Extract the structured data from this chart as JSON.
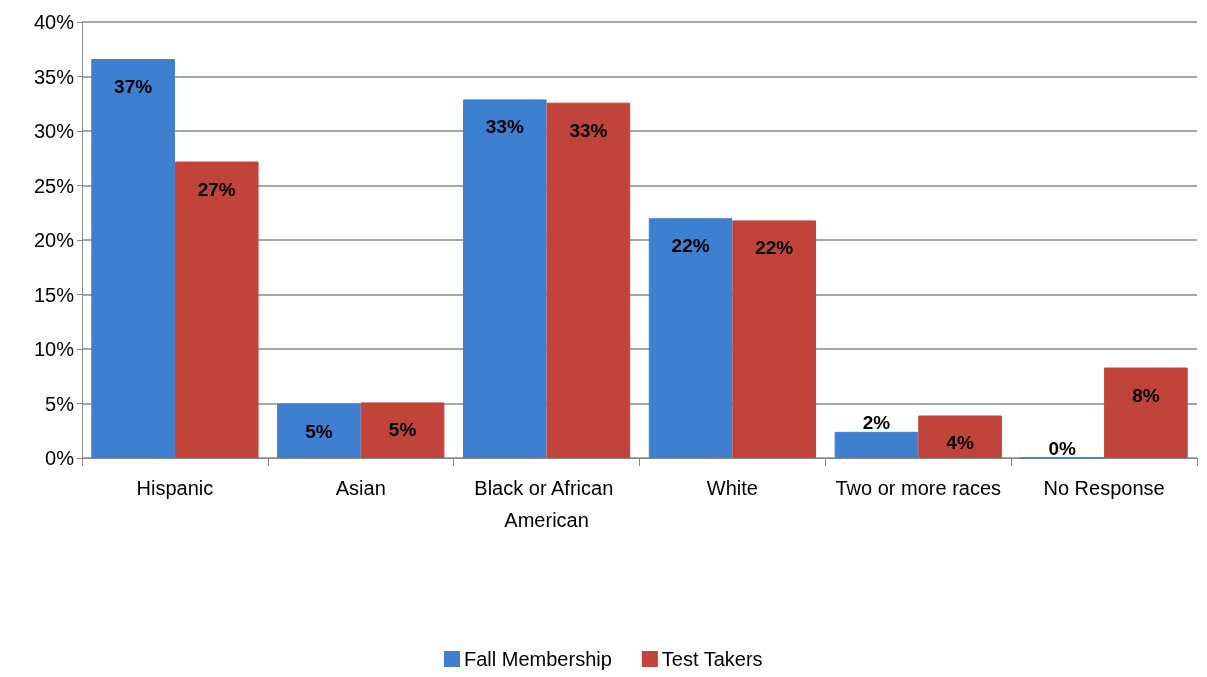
{
  "chart_data": {
    "type": "bar",
    "categories": [
      "Hispanic",
      "Asian",
      "Black or African American",
      "White",
      "Two or more races",
      "No Response"
    ],
    "series": [
      {
        "name": "Fall Membership",
        "color": "#3f7fd0",
        "values": [
          36.6,
          5.0,
          32.9,
          22.0,
          2.4,
          0
        ],
        "value_labels": [
          "37%",
          "5%",
          "33%",
          "22%",
          "2%",
          "0%"
        ]
      },
      {
        "name": "Test Takers",
        "color": "#c0443a",
        "values": [
          27.2,
          5.1,
          32.6,
          21.8,
          3.9,
          8.3
        ],
        "value_labels": [
          "27%",
          "5%",
          "33%",
          "22%",
          "4%",
          "8%"
        ]
      }
    ],
    "ylim": [
      0,
      40
    ],
    "yticks": [
      {
        "value": 0,
        "label": "0%"
      },
      {
        "value": 5,
        "label": "5%"
      },
      {
        "value": 10,
        "label": "10%"
      },
      {
        "value": 15,
        "label": "15%"
      },
      {
        "value": 20,
        "label": "20%"
      },
      {
        "value": 25,
        "label": "25%"
      },
      {
        "value": 30,
        "label": "30%"
      },
      {
        "value": 35,
        "label": "35%"
      },
      {
        "value": 40,
        "label": "40%"
      }
    ],
    "grid": "y",
    "legend": "bottom"
  }
}
